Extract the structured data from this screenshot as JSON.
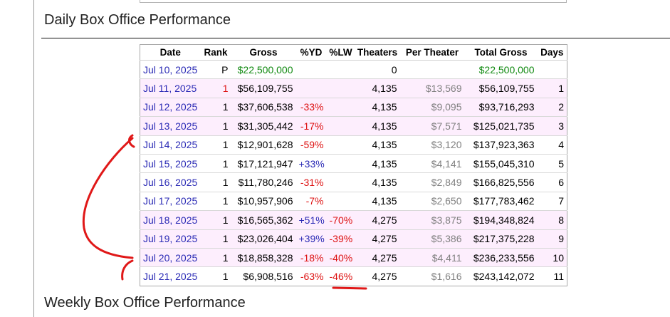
{
  "daily_section": {
    "title": "Daily Box Office Performance"
  },
  "weekly_section": {
    "title": "Weekly Box Office Performance"
  },
  "table": {
    "headers": [
      "Date",
      "Rank",
      "Gross",
      "%YD",
      "%LW",
      "Theaters",
      "Per Theater",
      "Total Gross",
      "Days"
    ],
    "rows": [
      {
        "date": "Jul 10, 2025",
        "rank": "P",
        "gross": "$22,500,000",
        "yd": "",
        "lw": "",
        "theaters": "0",
        "per_theater": "",
        "total": "$22,500,000",
        "days": ""
      },
      {
        "date": "Jul 11, 2025",
        "rank": "1",
        "gross": "$56,109,755",
        "yd": "",
        "lw": "",
        "theaters": "4,135",
        "per_theater": "$13,569",
        "total": "$56,109,755",
        "days": "1"
      },
      {
        "date": "Jul 12, 2025",
        "rank": "1",
        "gross": "$37,606,538",
        "yd": "-33%",
        "lw": "",
        "theaters": "4,135",
        "per_theater": "$9,095",
        "total": "$93,716,293",
        "days": "2"
      },
      {
        "date": "Jul 13, 2025",
        "rank": "1",
        "gross": "$31,305,442",
        "yd": "-17%",
        "lw": "",
        "theaters": "4,135",
        "per_theater": "$7,571",
        "total": "$125,021,735",
        "days": "3"
      },
      {
        "date": "Jul 14, 2025",
        "rank": "1",
        "gross": "$12,901,628",
        "yd": "-59%",
        "lw": "",
        "theaters": "4,135",
        "per_theater": "$3,120",
        "total": "$137,923,363",
        "days": "4"
      },
      {
        "date": "Jul 15, 2025",
        "rank": "1",
        "gross": "$17,121,947",
        "yd": "+33%",
        "lw": "",
        "theaters": "4,135",
        "per_theater": "$4,141",
        "total": "$155,045,310",
        "days": "5"
      },
      {
        "date": "Jul 16, 2025",
        "rank": "1",
        "gross": "$11,780,246",
        "yd": "-31%",
        "lw": "",
        "theaters": "4,135",
        "per_theater": "$2,849",
        "total": "$166,825,556",
        "days": "6"
      },
      {
        "date": "Jul 17, 2025",
        "rank": "1",
        "gross": "$10,957,906",
        "yd": "-7%",
        "lw": "",
        "theaters": "4,135",
        "per_theater": "$2,650",
        "total": "$177,783,462",
        "days": "7"
      },
      {
        "date": "Jul 18, 2025",
        "rank": "1",
        "gross": "$16,565,362",
        "yd": "+51%",
        "lw": "-70%",
        "theaters": "4,275",
        "per_theater": "$3,875",
        "total": "$194,348,824",
        "days": "8"
      },
      {
        "date": "Jul 19, 2025",
        "rank": "1",
        "gross": "$23,026,404",
        "yd": "+39%",
        "lw": "-39%",
        "theaters": "4,275",
        "per_theater": "$5,386",
        "total": "$217,375,228",
        "days": "9"
      },
      {
        "date": "Jul 20, 2025",
        "rank": "1",
        "gross": "$18,858,328",
        "yd": "-18%",
        "lw": "-40%",
        "theaters": "4,275",
        "per_theater": "$4,411",
        "total": "$236,233,556",
        "days": "10"
      },
      {
        "date": "Jul 21, 2025",
        "rank": "1",
        "gross": "$6,908,516",
        "yd": "-63%",
        "lw": "-46%",
        "theaters": "4,275",
        "per_theater": "$1,616",
        "total": "$243,142,072",
        "days": "11"
      }
    ]
  },
  "colors": {
    "date_link": "#2a2ab5",
    "preview_green": "#118a11",
    "negative_red": "#dd1111",
    "positive_blue": "#2a2ab5",
    "weekend_row_bg": "#fdeefd",
    "annotation_red": "#e01818"
  }
}
